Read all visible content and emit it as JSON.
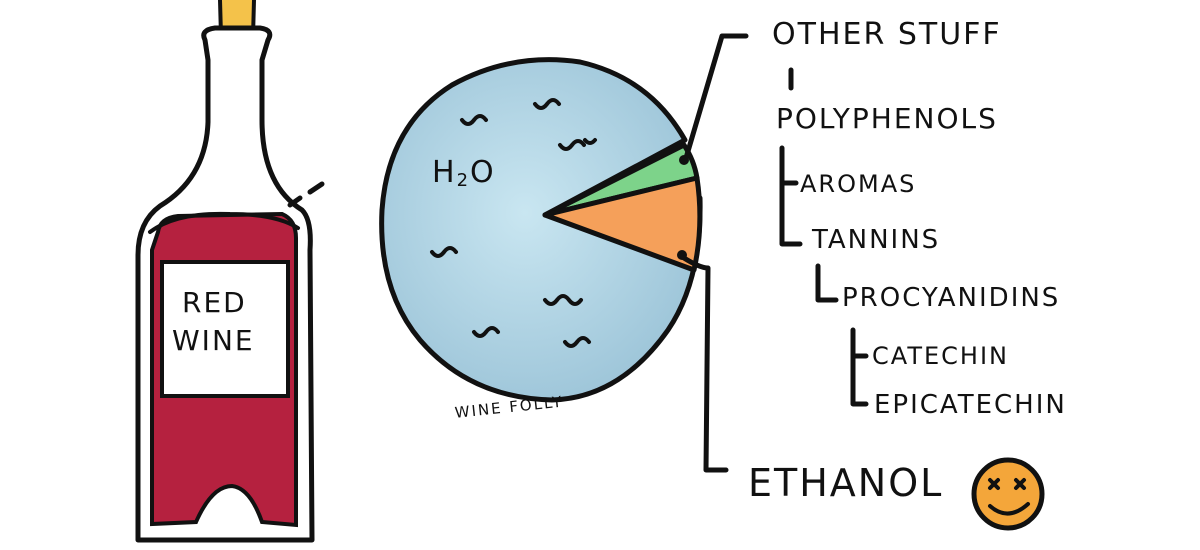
{
  "bottle": {
    "label_line1": "RED",
    "label_line2": "WINE",
    "wine_color": "#b5213f",
    "cork_color": "#f4c24a"
  },
  "pie": {
    "water_label_main": "H",
    "water_label_sub": "2",
    "water_label_end": "O",
    "watermark": "WINE  FOLLY",
    "water_color": "#a9cfe0",
    "ethanol_color": "#f5a05a",
    "other_color": "#7dd38a"
  },
  "tree": {
    "other_stuff": "OTHER STUFF",
    "polyphenols": "POLYPHENOLS",
    "aromas": "AROMAS",
    "tannins": "TANNINS",
    "procyanidins": "PROCYANIDINS",
    "catechin": "CATECHIN",
    "epicatechin": "EPICATECHIN",
    "ethanol": "ETHANOL"
  },
  "smiley": {
    "color": "#f4a63a"
  }
}
